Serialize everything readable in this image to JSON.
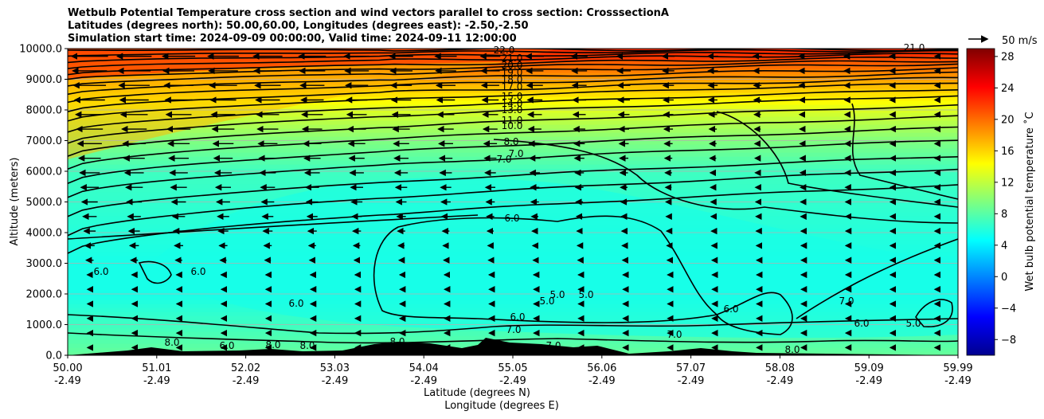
{
  "chart_data": {
    "type": "heatmap",
    "title_lines": [
      "Wetbulb Potential Temperature cross section and wind vectors parallel to cross section: CrosssectionA",
      "Latitudes (degrees north): 50.00,60.00, Longitudes (degrees east): -2.50,-2.50",
      "Simulation start time: 2024-09-09 00:00:00, Valid time: 2024-09-11 12:00:00"
    ],
    "ylabel": "Altitude (meters)",
    "xlabel_lines": [
      "Latitude (degrees N)",
      "Longitude (degrees E)"
    ],
    "x_ticks": [
      {
        "lat": "50.00",
        "lon": "-2.49"
      },
      {
        "lat": "51.01",
        "lon": "-2.49"
      },
      {
        "lat": "52.02",
        "lon": "-2.49"
      },
      {
        "lat": "53.03",
        "lon": "-2.49"
      },
      {
        "lat": "54.04",
        "lon": "-2.49"
      },
      {
        "lat": "55.05",
        "lon": "-2.49"
      },
      {
        "lat": "56.06",
        "lon": "-2.49"
      },
      {
        "lat": "57.07",
        "lon": "-2.49"
      },
      {
        "lat": "58.08",
        "lon": "-2.49"
      },
      {
        "lat": "59.09",
        "lon": "-2.49"
      },
      {
        "lat": "59.99",
        "lon": "-2.49"
      }
    ],
    "x_range": [
      50.0,
      59.99
    ],
    "y_ticks": [
      "0.0",
      "1000.0",
      "2000.0",
      "3000.0",
      "4000.0",
      "5000.0",
      "6000.0",
      "7000.0",
      "8000.0",
      "9000.0",
      "10000.0"
    ],
    "y_range": [
      0,
      10000
    ],
    "grid_y": true,
    "colorbar": {
      "label": "Wet bulb potential temperature ˚C",
      "ticks": [
        "−8",
        "−4",
        "0",
        "4",
        "8",
        "12",
        "16",
        "20",
        "24",
        "28"
      ],
      "range": [
        -10,
        29
      ],
      "colormap": "jet"
    },
    "quiver_key": {
      "label": "50 m/s",
      "value": 50
    },
    "contour_levels_labeled": [
      "22.0",
      "21.0",
      "20.0",
      "19.0",
      "18.0",
      "17.0",
      "15.0",
      "14.0",
      "13.0",
      "11.0",
      "10.0",
      "8.0",
      "7.0",
      "7.0",
      "6.0",
      "6.0",
      "6.0",
      "6.0",
      "6.0",
      "7.0",
      "5.0",
      "5.0",
      "5.0",
      "6.0",
      "7.0",
      "6.0",
      "6.0",
      "8.0",
      "8.0",
      "5.0",
      "8.0",
      "8.0",
      "8.0",
      "7.0",
      "21.0",
      "7.0"
    ],
    "theta_profile": [
      {
        "alt": 0,
        "value": 8.5
      },
      {
        "alt": 1000,
        "value": 7.0
      },
      {
        "alt": 2000,
        "value": 5.5
      },
      {
        "alt": 3000,
        "value": 5.5
      },
      {
        "alt": 4000,
        "value": 6.0
      },
      {
        "alt": 5000,
        "value": 6.5
      },
      {
        "alt": 6000,
        "value": 7.0
      },
      {
        "alt": 7000,
        "value": 9.5
      },
      {
        "alt": 8000,
        "value": 13.0
      },
      {
        "alt": 9000,
        "value": 18.0
      },
      {
        "alt": 10000,
        "value": 22.5
      }
    ]
  }
}
